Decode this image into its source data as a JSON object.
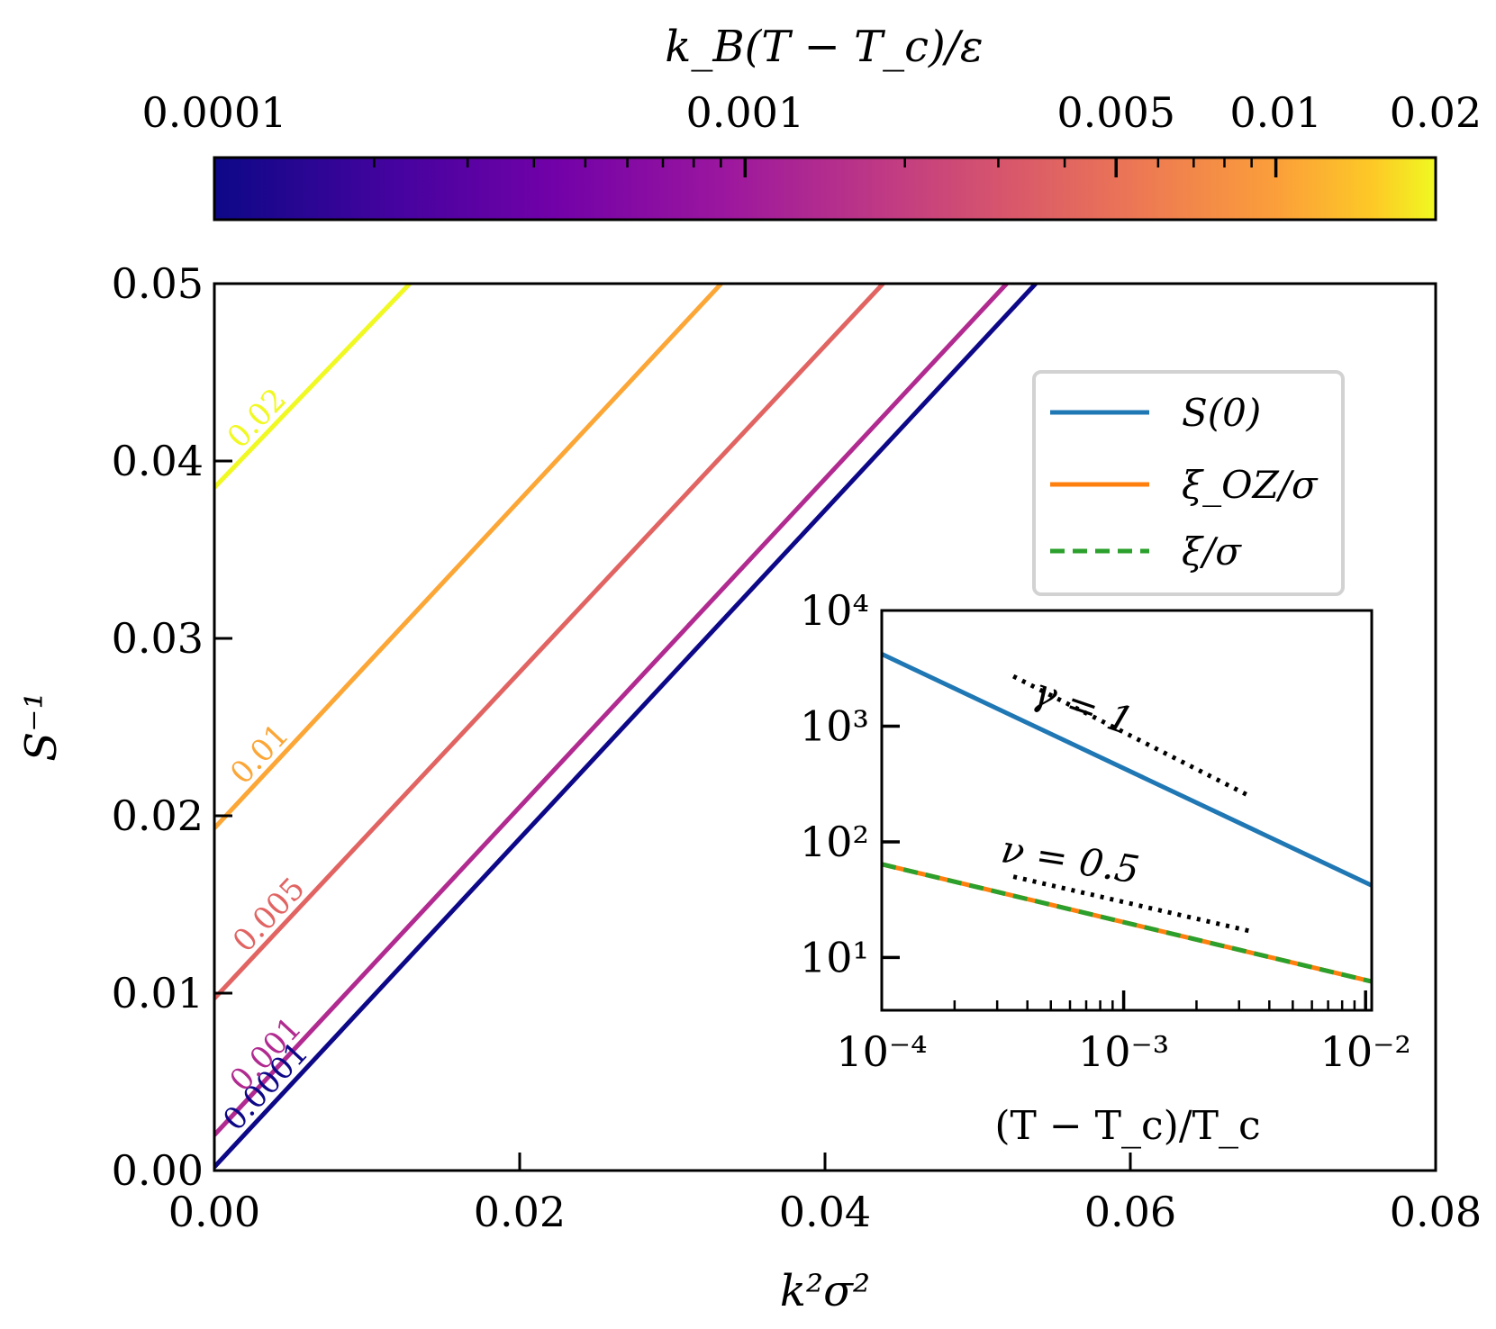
{
  "chart_data": [
    {
      "type": "colorbar",
      "label": "k_B(T − T_c)/ε",
      "scale": "log",
      "range": [
        0.0001,
        0.02
      ],
      "ticks": [
        0.0001,
        0.001,
        0.005,
        0.01,
        0.02
      ],
      "tick_labels": [
        "0.0001",
        "0.001",
        "0.005",
        "0.01",
        "0.02"
      ],
      "colormap": "plasma"
    },
    {
      "type": "line",
      "xlabel": "k²σ²",
      "ylabel": "S⁻¹",
      "xlim": [
        0,
        0.08
      ],
      "ylim": [
        0,
        0.05
      ],
      "xticks": [
        "0.00",
        "0.02",
        "0.04",
        "0.06",
        "0.08"
      ],
      "yticks": [
        "0.00",
        "0.01",
        "0.02",
        "0.03",
        "0.04",
        "0.05"
      ],
      "series": [
        {
          "name": "0.0001",
          "color": "#0d0887",
          "x": [
            0,
            0.0538
          ],
          "y": [
            0.0002,
            0.05
          ]
        },
        {
          "name": "0.001",
          "color": "#b12a90",
          "x": [
            0,
            0.0519
          ],
          "y": [
            0.002,
            0.05
          ]
        },
        {
          "name": "0.005",
          "color": "#e16462",
          "x": [
            0,
            0.0438
          ],
          "y": [
            0.0097,
            0.05
          ]
        },
        {
          "name": "0.01",
          "color": "#fca636",
          "x": [
            0,
            0.0332
          ],
          "y": [
            0.0193,
            0.05
          ]
        },
        {
          "name": "0.02",
          "color": "#f0f921",
          "x": [
            0,
            0.0128
          ],
          "y": [
            0.0385,
            0.05
          ]
        }
      ]
    },
    {
      "type": "line",
      "scale": "loglog",
      "xlabel": "(T − T_c)/T_c",
      "xlim": [
        0.0001,
        0.0106
      ],
      "ylim": [
        3.5,
        10000
      ],
      "xticks": [
        "10⁻⁴",
        "10⁻³",
        "10⁻²"
      ],
      "yticks": [
        "10¹",
        "10²",
        "10³",
        "10⁴"
      ],
      "legend": {
        "position": "above inset, top-right",
        "entries": [
          "S(0)",
          "ξ_OZ/σ",
          "ξ/σ"
        ]
      },
      "series": [
        {
          "name": "S(0)",
          "color": "#1f77b4",
          "style": "solid",
          "x": [
            0.0001,
            0.0106
          ],
          "y": [
            4200,
            42
          ]
        },
        {
          "name": "ξ_OZ/σ",
          "color": "#ff7f0e",
          "style": "solid",
          "x": [
            0.0001,
            0.0106
          ],
          "y": [
            64,
            6.2
          ]
        },
        {
          "name": "ξ/σ",
          "color": "#2ca02c",
          "style": "dashed",
          "x": [
            0.0001,
            0.0106
          ],
          "y": [
            64,
            6.2
          ]
        }
      ],
      "annotations": [
        {
          "text": "γ = 1",
          "slope_guide": {
            "x": [
              0.00035,
              0.0033
            ],
            "y": [
              2700,
              250
            ]
          }
        },
        {
          "text": "ν = 0.5",
          "slope_guide": {
            "x": [
              0.00035,
              0.0033
            ],
            "y": [
              50,
              17
            ]
          }
        }
      ]
    }
  ]
}
